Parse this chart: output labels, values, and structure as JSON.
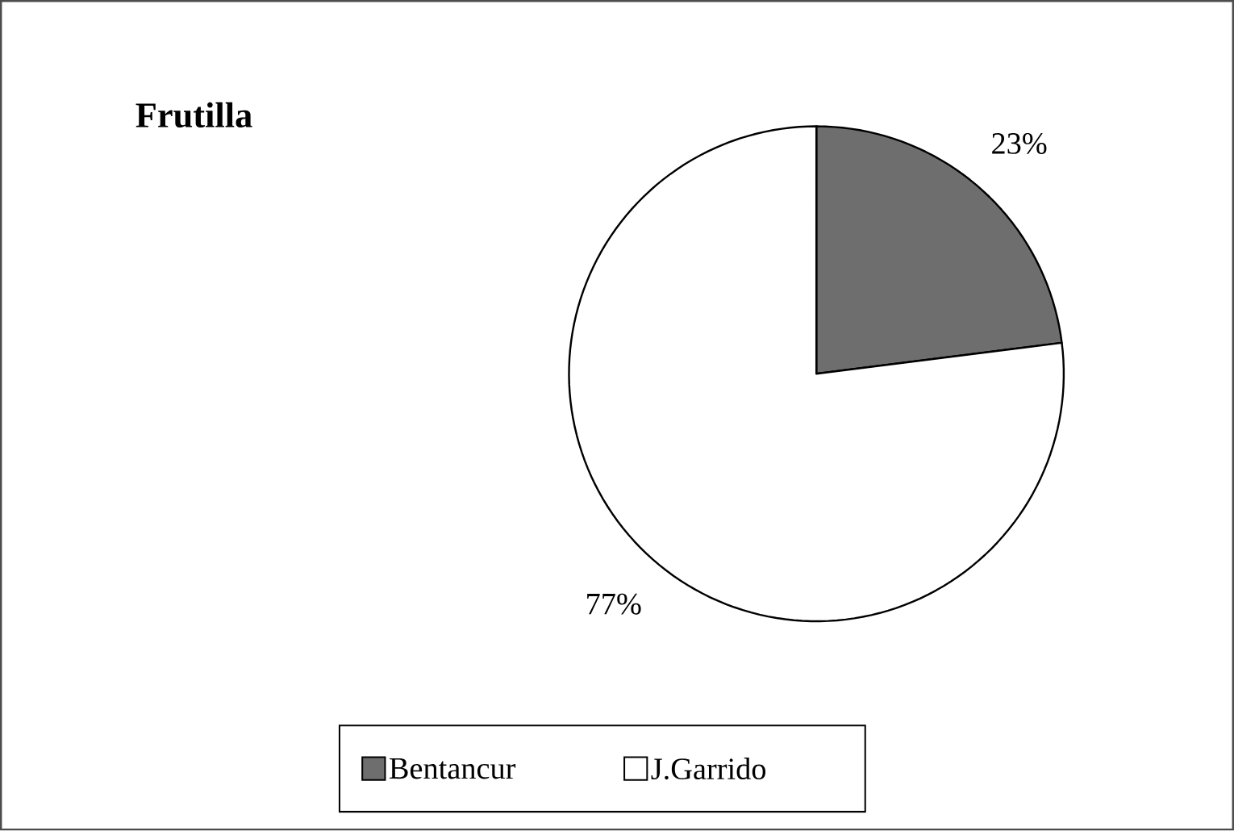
{
  "chart_data": {
    "type": "pie",
    "title": "Frutilla",
    "categories": [
      "Bentancur",
      "J.Garrido"
    ],
    "values": [
      23,
      77
    ],
    "colors": [
      "#6e6e6e",
      "#ffffff"
    ],
    "value_labels": [
      "23%",
      "77%"
    ],
    "legend": "bottom"
  }
}
